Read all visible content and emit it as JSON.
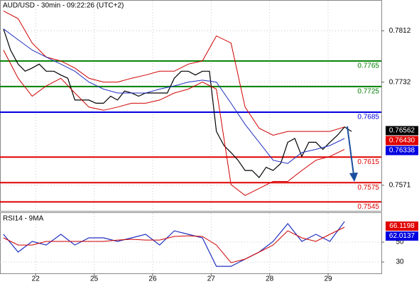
{
  "chart_data": [
    {
      "type": "line",
      "title": "AUD/USD - 30min - 09:22:26 (UTC+2)",
      "xlim": [
        0.39,
        6.91
      ],
      "ylim": [
        0.7531,
        0.7859
      ],
      "yticks": [
        0.7812,
        0.7732,
        0.7571
      ],
      "grid": true,
      "levels": [
        {
          "value": 0.7765,
          "color": "#008000"
        },
        {
          "value": 0.7725,
          "color": "#008000"
        },
        {
          "value": 0.7685,
          "color": "#0000e0"
        },
        {
          "value": 0.7615,
          "color": "#e00000"
        },
        {
          "value": 0.7575,
          "color": "#e00000"
        },
        {
          "value": 0.7545,
          "color": "#e00000"
        }
      ],
      "price_markers": [
        {
          "value": 0.76562,
          "color": "#000000"
        },
        {
          "value": 0.7643,
          "label": "0.76430",
          "color": "#e00000"
        },
        {
          "value": 0.76338,
          "color": "#0000e0"
        }
      ],
      "series": [
        {
          "color": "#000000",
          "x": [
            0.45,
            0.57,
            0.7,
            0.82,
            0.94,
            1.06,
            1.18,
            1.31,
            1.43,
            1.55,
            1.67,
            1.79,
            1.91,
            2.03,
            2.16,
            2.28,
            2.4,
            2.52,
            2.64,
            2.76,
            2.88,
            3.0,
            3.12,
            3.25,
            3.37,
            3.49,
            3.61,
            3.73,
            3.85,
            3.97,
            4.09,
            4.22,
            4.34,
            4.46,
            4.58,
            4.7,
            4.82,
            4.94,
            5.06,
            5.19,
            5.31,
            5.43,
            5.55,
            5.67,
            5.79,
            5.91,
            6.03,
            6.16,
            6.28,
            6.4
          ],
          "values": [
            0.7815,
            0.7782,
            0.776,
            0.7749,
            0.7754,
            0.776,
            0.7749,
            0.7749,
            0.7743,
            0.7738,
            0.7704,
            0.7704,
            0.7704,
            0.7699,
            0.7699,
            0.771,
            0.7704,
            0.7718,
            0.7715,
            0.771,
            0.7715,
            0.7715,
            0.7715,
            0.7715,
            0.7738,
            0.7749,
            0.7749,
            0.7743,
            0.7749,
            0.7749,
            0.7655,
            0.7633,
            0.7622,
            0.761,
            0.7594,
            0.7594,
            0.7583,
            0.7599,
            0.7594,
            0.7605,
            0.7638,
            0.7644,
            0.7616,
            0.7638,
            0.7638,
            0.7627,
            0.7638,
            0.7649,
            0.7662,
            0.7655
          ]
        },
        {
          "color": "#d00000",
          "x": [
            0.45,
            0.7,
            0.94,
            1.18,
            1.43,
            1.67,
            1.91,
            2.16,
            2.4,
            2.64,
            2.88,
            3.12,
            3.37,
            3.61,
            3.85,
            4.09,
            4.34,
            4.58,
            4.82,
            5.06,
            5.31,
            5.55,
            5.79,
            6.03,
            6.28
          ],
          "values": [
            0.7843,
            0.7831,
            0.7793,
            0.7771,
            0.7765,
            0.7754,
            0.7738,
            0.7732,
            0.7732,
            0.7738,
            0.7743,
            0.7749,
            0.7749,
            0.776,
            0.7765,
            0.7804,
            0.7793,
            0.7693,
            0.766,
            0.7649,
            0.7655,
            0.7655,
            0.7655,
            0.7655,
            0.7662
          ]
        },
        {
          "color": "#d00000",
          "x": [
            0.45,
            0.7,
            0.94,
            1.18,
            1.43,
            1.67,
            1.91,
            2.16,
            2.4,
            2.64,
            2.88,
            3.12,
            3.37,
            3.61,
            3.85,
            4.09,
            4.34,
            4.58,
            4.82,
            5.06,
            5.31,
            5.55,
            5.79,
            6.03,
            6.28
          ],
          "values": [
            0.7782,
            0.7738,
            0.771,
            0.7726,
            0.7738,
            0.7715,
            0.7693,
            0.7688,
            0.7693,
            0.7699,
            0.7699,
            0.7704,
            0.7715,
            0.7721,
            0.7732,
            0.7721,
            0.7572,
            0.7555,
            0.7566,
            0.7577,
            0.7577,
            0.7594,
            0.761,
            0.7616,
            0.7627
          ]
        },
        {
          "color": "#2030c0",
          "x": [
            0.45,
            0.7,
            0.94,
            1.18,
            1.43,
            1.67,
            1.91,
            2.16,
            2.4,
            2.64,
            2.88,
            3.12,
            3.37,
            3.61,
            3.85,
            4.09,
            4.34,
            4.58,
            4.82,
            5.06,
            5.31,
            5.55,
            5.79,
            6.03,
            6.28
          ],
          "values": [
            0.7815,
            0.7798,
            0.7782,
            0.7771,
            0.776,
            0.7749,
            0.7732,
            0.7721,
            0.7715,
            0.7715,
            0.7715,
            0.7721,
            0.7726,
            0.7732,
            0.7735,
            0.7732,
            0.7699,
            0.7666,
            0.7638,
            0.761,
            0.7605,
            0.7622,
            0.7627,
            0.7633,
            0.7644
          ]
        }
      ]
    },
    {
      "type": "line",
      "title": "RSI14 - 9MA",
      "xlim": [
        0.39,
        6.91
      ],
      "ylim": [
        18.6,
        79.3
      ],
      "yticks": [
        50,
        30
      ],
      "grid": true,
      "xticks": [
        {
          "value": 1,
          "label": "22"
        },
        {
          "value": 2,
          "label": "25"
        },
        {
          "value": 3,
          "label": "26"
        },
        {
          "value": 4,
          "label": "27"
        },
        {
          "value": 5,
          "label": "28"
        },
        {
          "value": 6,
          "label": "29"
        }
      ],
      "price_markers": [
        {
          "value": 66.1198,
          "color": "#e00000"
        },
        {
          "value": 62.0137,
          "color": "#0000e0"
        }
      ],
      "series": [
        {
          "color": "#2030c0",
          "x": [
            0.45,
            0.7,
            0.94,
            1.18,
            1.43,
            1.67,
            1.91,
            2.16,
            2.4,
            2.64,
            2.88,
            3.12,
            3.37,
            3.61,
            3.85,
            4.09,
            4.34,
            4.58,
            4.82,
            5.06,
            5.31,
            5.55,
            5.79,
            6.03,
            6.28
          ],
          "values": [
            57.9,
            40,
            50.7,
            47.1,
            57.9,
            47.1,
            54.3,
            54.3,
            50.7,
            54.3,
            57.9,
            47.1,
            61.4,
            57.9,
            54.3,
            25.7,
            25.7,
            32.9,
            40,
            50.7,
            68.6,
            50.7,
            57.9,
            50.7,
            70.7
          ]
        },
        {
          "color": "#d00000",
          "x": [
            0.45,
            0.7,
            0.94,
            1.18,
            1.43,
            1.67,
            1.91,
            2.16,
            2.4,
            2.64,
            2.88,
            3.12,
            3.37,
            3.61,
            3.85,
            4.09,
            4.34,
            4.58,
            4.82,
            5.06,
            5.31,
            5.55,
            5.79,
            6.03,
            6.28
          ],
          "values": [
            54.3,
            47.1,
            47.1,
            50.7,
            50.7,
            50.7,
            50.7,
            50.7,
            52.1,
            52.9,
            52.1,
            52.1,
            55.7,
            56.4,
            55.7,
            47.1,
            29.3,
            32.9,
            40,
            47.1,
            61.4,
            54.3,
            50.7,
            57.9,
            65
          ]
        }
      ]
    }
  ]
}
